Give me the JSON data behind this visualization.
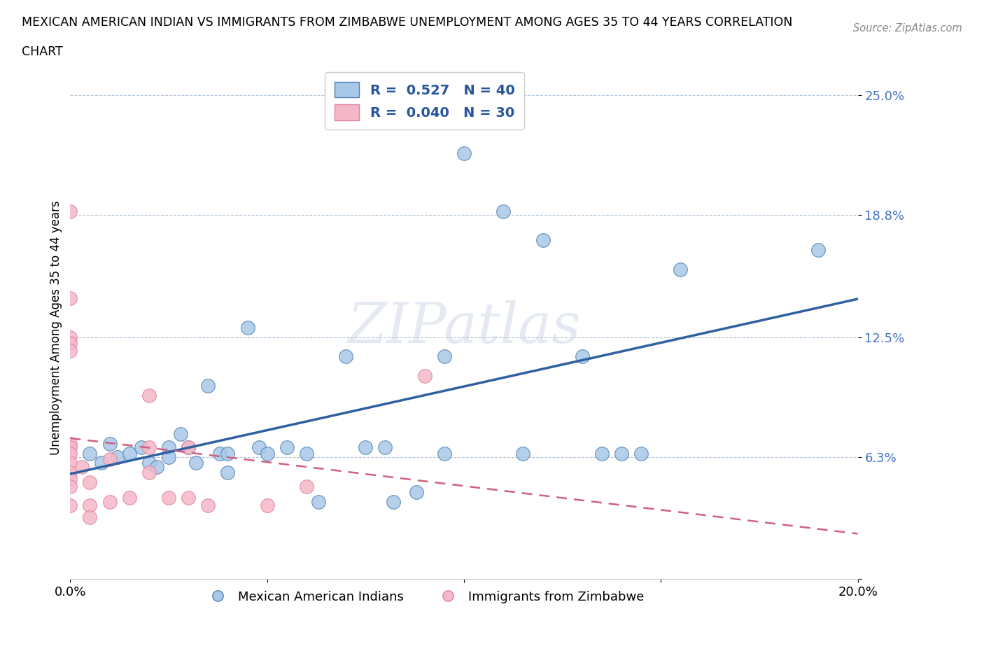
{
  "title_line1": "MEXICAN AMERICAN INDIAN VS IMMIGRANTS FROM ZIMBABWE UNEMPLOYMENT AMONG AGES 35 TO 44 YEARS CORRELATION",
  "title_line2": "CHART",
  "source": "Source: ZipAtlas.com",
  "ylabel": "Unemployment Among Ages 35 to 44 years",
  "xlim": [
    0.0,
    0.2
  ],
  "ylim": [
    0.0,
    0.26
  ],
  "yticks": [
    0.0,
    0.063,
    0.125,
    0.188,
    0.25
  ],
  "ytick_labels": [
    "",
    "6.3%",
    "12.5%",
    "18.8%",
    "25.0%"
  ],
  "xticks": [
    0.0,
    0.05,
    0.1,
    0.15,
    0.2
  ],
  "xtick_labels": [
    "0.0%",
    "",
    "",
    "",
    "20.0%"
  ],
  "blue_R": 0.527,
  "blue_N": 40,
  "pink_R": 0.04,
  "pink_N": 30,
  "blue_color": "#a8c8e8",
  "pink_color": "#f5b8c8",
  "blue_edge_color": "#5080b0",
  "pink_edge_color": "#e080a0",
  "blue_line_color": "#3060a0",
  "pink_line_color": "#d06080",
  "blue_scatter": [
    [
      0.005,
      0.065
    ],
    [
      0.008,
      0.06
    ],
    [
      0.01,
      0.07
    ],
    [
      0.012,
      0.063
    ],
    [
      0.015,
      0.065
    ],
    [
      0.018,
      0.068
    ],
    [
      0.02,
      0.06
    ],
    [
      0.022,
      0.058
    ],
    [
      0.025,
      0.068
    ],
    [
      0.025,
      0.063
    ],
    [
      0.028,
      0.075
    ],
    [
      0.03,
      0.068
    ],
    [
      0.032,
      0.06
    ],
    [
      0.035,
      0.1
    ],
    [
      0.038,
      0.065
    ],
    [
      0.04,
      0.065
    ],
    [
      0.04,
      0.055
    ],
    [
      0.045,
      0.13
    ],
    [
      0.048,
      0.068
    ],
    [
      0.05,
      0.065
    ],
    [
      0.055,
      0.068
    ],
    [
      0.06,
      0.065
    ],
    [
      0.063,
      0.04
    ],
    [
      0.07,
      0.115
    ],
    [
      0.075,
      0.068
    ],
    [
      0.08,
      0.068
    ],
    [
      0.082,
      0.04
    ],
    [
      0.088,
      0.045
    ],
    [
      0.095,
      0.115
    ],
    [
      0.095,
      0.065
    ],
    [
      0.1,
      0.22
    ],
    [
      0.11,
      0.19
    ],
    [
      0.115,
      0.065
    ],
    [
      0.12,
      0.175
    ],
    [
      0.13,
      0.115
    ],
    [
      0.135,
      0.065
    ],
    [
      0.14,
      0.065
    ],
    [
      0.145,
      0.065
    ],
    [
      0.155,
      0.16
    ],
    [
      0.19,
      0.17
    ]
  ],
  "pink_scatter": [
    [
      0.0,
      0.19
    ],
    [
      0.0,
      0.145
    ],
    [
      0.0,
      0.125
    ],
    [
      0.0,
      0.122
    ],
    [
      0.0,
      0.118
    ],
    [
      0.0,
      0.07
    ],
    [
      0.0,
      0.068
    ],
    [
      0.0,
      0.065
    ],
    [
      0.0,
      0.06
    ],
    [
      0.0,
      0.055
    ],
    [
      0.0,
      0.052
    ],
    [
      0.0,
      0.048
    ],
    [
      0.0,
      0.038
    ],
    [
      0.003,
      0.058
    ],
    [
      0.005,
      0.05
    ],
    [
      0.005,
      0.038
    ],
    [
      0.005,
      0.032
    ],
    [
      0.01,
      0.062
    ],
    [
      0.01,
      0.04
    ],
    [
      0.015,
      0.042
    ],
    [
      0.02,
      0.095
    ],
    [
      0.02,
      0.068
    ],
    [
      0.02,
      0.055
    ],
    [
      0.025,
      0.042
    ],
    [
      0.03,
      0.068
    ],
    [
      0.03,
      0.042
    ],
    [
      0.035,
      0.038
    ],
    [
      0.05,
      0.038
    ],
    [
      0.06,
      0.048
    ],
    [
      0.09,
      0.105
    ]
  ]
}
